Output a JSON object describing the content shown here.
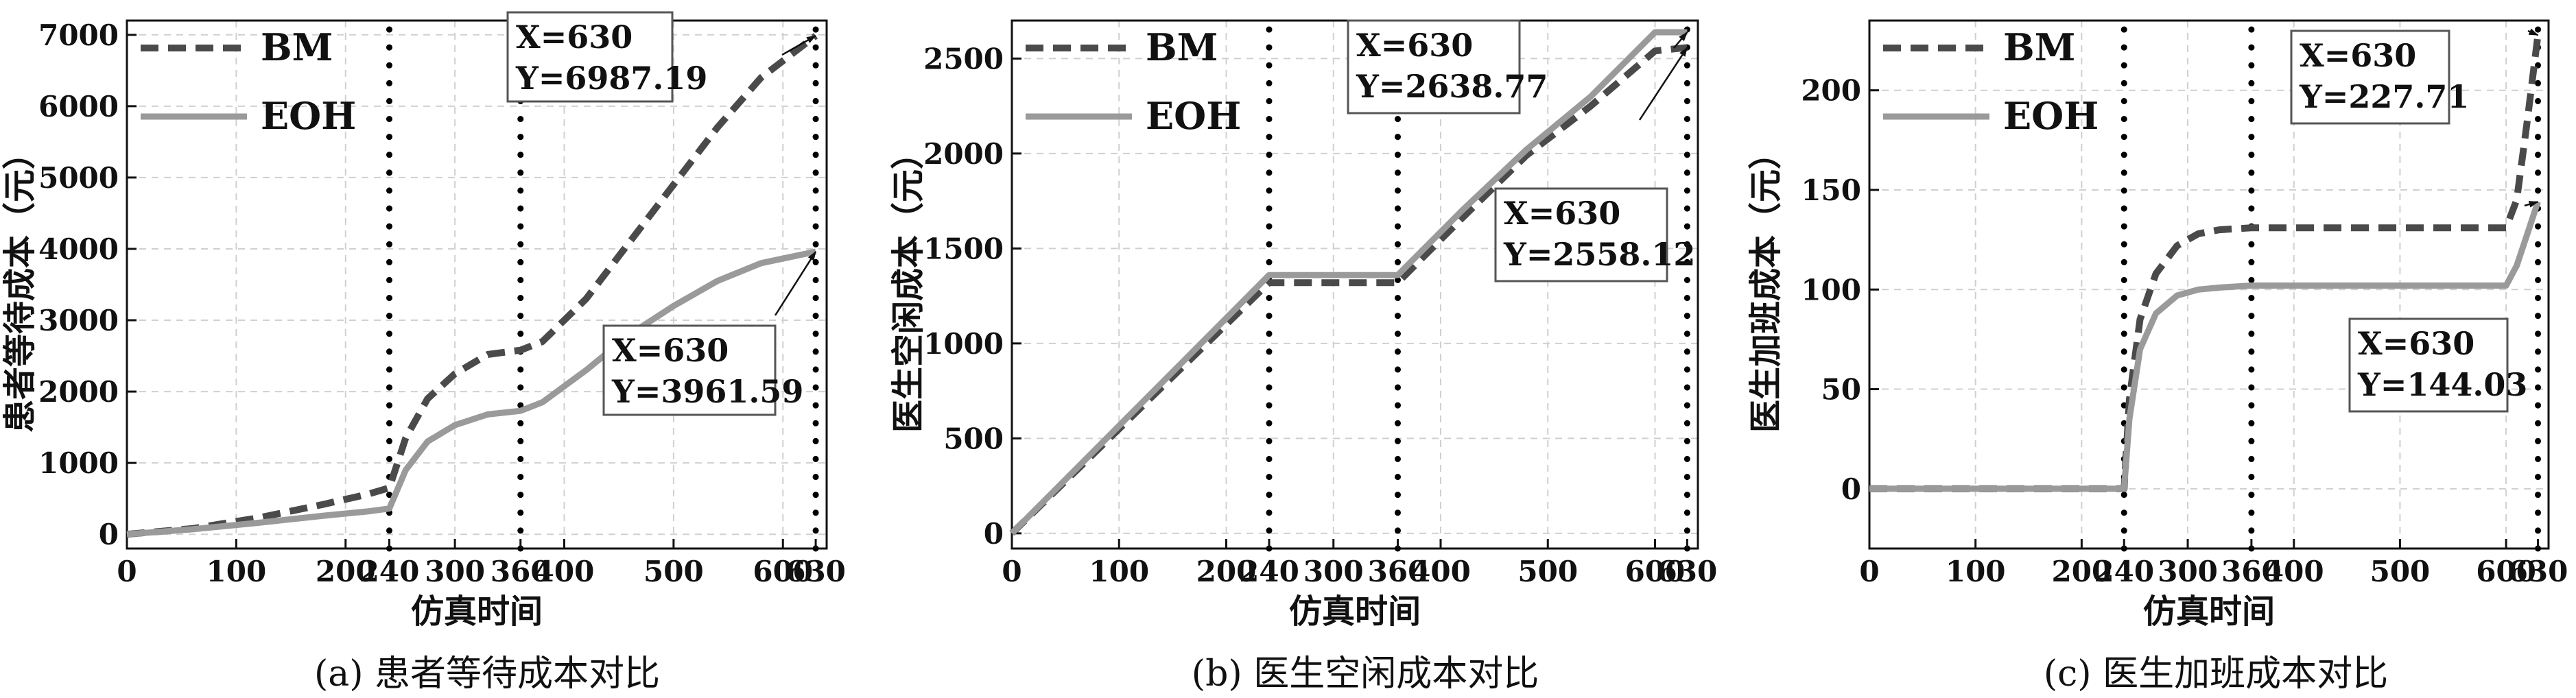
{
  "colors": {
    "bm": "#4a4a4a",
    "eoh": "#9a9a9a",
    "grid": "#d0d0d0",
    "annotation": "#111111"
  },
  "chart_data": [
    {
      "type": "line",
      "panel_label": "(a) 患者等待成本对比",
      "xlabel": "仿真时间",
      "ylabel": "患者等待成本（元）",
      "xlim": [
        0,
        640
      ],
      "ylim": [
        -200,
        7200
      ],
      "xticks": [
        "0",
        "100",
        "200",
        "240",
        "300",
        "360",
        "400",
        "500",
        "600",
        "630"
      ],
      "xtick_values": [
        0,
        100,
        200,
        240,
        300,
        360,
        400,
        500,
        600,
        630
      ],
      "yticks": [
        "0",
        "1000",
        "2000",
        "3000",
        "4000",
        "5000",
        "6000",
        "7000"
      ],
      "ytick_values": [
        0,
        1000,
        2000,
        3000,
        4000,
        5000,
        6000,
        7000
      ],
      "vlines": [
        240,
        360,
        630
      ],
      "grid": true,
      "legend_position": "top-left",
      "series": [
        {
          "name": "BM",
          "style": "dashed",
          "x": [
            0,
            60,
            120,
            180,
            220,
            240,
            255,
            275,
            300,
            330,
            360,
            380,
            420,
            460,
            500,
            540,
            580,
            630
          ],
          "y": [
            0,
            80,
            230,
            420,
            560,
            650,
            1350,
            1900,
            2250,
            2520,
            2580,
            2700,
            3300,
            4100,
            4900,
            5700,
            6400,
            6987.19
          ]
        },
        {
          "name": "EOH",
          "style": "solid",
          "x": [
            0,
            60,
            120,
            180,
            220,
            240,
            255,
            275,
            300,
            330,
            360,
            380,
            420,
            460,
            500,
            540,
            580,
            630
          ],
          "y": [
            0,
            70,
            160,
            260,
            320,
            360,
            900,
            1300,
            1530,
            1680,
            1730,
            1850,
            2300,
            2800,
            3200,
            3550,
            3800,
            3961.59
          ]
        }
      ],
      "annotations": [
        {
          "x_label": "X=630",
          "y_label": "Y=6987.19",
          "x": 630,
          "y": 6987.19
        },
        {
          "x_label": "X=630",
          "y_label": "Y=3961.59",
          "x": 630,
          "y": 3961.59
        }
      ]
    },
    {
      "type": "line",
      "panel_label": "(b) 医生空闲成本对比",
      "xlabel": "仿真时间",
      "ylabel": "医生空闲成本（元）",
      "xlim": [
        0,
        640
      ],
      "ylim": [
        -80,
        2700
      ],
      "xticks": [
        "0",
        "100",
        "200",
        "240",
        "300",
        "360",
        "400",
        "500",
        "600",
        "630"
      ],
      "xtick_values": [
        0,
        100,
        200,
        240,
        300,
        360,
        400,
        500,
        600,
        630
      ],
      "yticks": [
        "0",
        "500",
        "1000",
        "1500",
        "2000",
        "2500"
      ],
      "ytick_values": [
        0,
        500,
        1000,
        1500,
        2000,
        2500
      ],
      "vlines": [
        240,
        360,
        630
      ],
      "grid": true,
      "legend_position": "top-left",
      "series": [
        {
          "name": "BM",
          "style": "dashed",
          "x": [
            0,
            60,
            120,
            180,
            240,
            300,
            360,
            420,
            480,
            540,
            600,
            630
          ],
          "y": [
            0,
            330,
            660,
            990,
            1320,
            1320,
            1320,
            1660,
            1990,
            2250,
            2540,
            2558.12
          ]
        },
        {
          "name": "EOH",
          "style": "solid",
          "x": [
            0,
            60,
            120,
            180,
            240,
            300,
            360,
            420,
            480,
            540,
            600,
            630
          ],
          "y": [
            0,
            340,
            680,
            1020,
            1360,
            1360,
            1360,
            1700,
            2020,
            2300,
            2638.77,
            2638.77
          ]
        }
      ],
      "annotations": [
        {
          "x_label": "X=630",
          "y_label": "Y=2638.77",
          "x": 630,
          "y": 2638.77
        },
        {
          "x_label": "X=630",
          "y_label": "Y=2558.12",
          "x": 630,
          "y": 2558.12
        }
      ]
    },
    {
      "type": "line",
      "panel_label": "(c) 医生加班成本对比",
      "xlabel": "仿真时间",
      "ylabel": "医生加班成本（元）",
      "xlim": [
        0,
        640
      ],
      "ylim": [
        -30,
        235
      ],
      "xticks": [
        "0",
        "100",
        "200",
        "240",
        "300",
        "360",
        "400",
        "500",
        "600",
        "630"
      ],
      "xtick_values": [
        0,
        100,
        200,
        240,
        300,
        360,
        400,
        500,
        600,
        630
      ],
      "yticks": [
        "0",
        "50",
        "100",
        "150",
        "200"
      ],
      "ytick_values": [
        0,
        50,
        100,
        150,
        200
      ],
      "vlines": [
        240,
        360,
        630
      ],
      "grid": true,
      "legend_position": "top-left",
      "series": [
        {
          "name": "BM",
          "style": "dashed",
          "x": [
            0,
            100,
            200,
            240,
            245,
            255,
            270,
            290,
            310,
            330,
            360,
            420,
            500,
            580,
            600,
            610,
            620,
            630
          ],
          "y": [
            0,
            0,
            0,
            0,
            45,
            85,
            108,
            122,
            128,
            130,
            131,
            131,
            131,
            131,
            131,
            145,
            185,
            227.71
          ]
        },
        {
          "name": "EOH",
          "style": "solid",
          "x": [
            0,
            100,
            200,
            240,
            245,
            255,
            270,
            290,
            310,
            330,
            360,
            420,
            500,
            580,
            600,
            610,
            620,
            630
          ],
          "y": [
            0,
            0,
            0,
            0,
            35,
            70,
            88,
            97,
            100,
            101,
            102,
            102,
            102,
            102,
            102,
            112,
            128,
            144.03
          ]
        }
      ],
      "annotations": [
        {
          "x_label": "X=630",
          "y_label": "Y=227.71",
          "x": 630,
          "y": 227.71
        },
        {
          "x_label": "X=630",
          "y_label": "Y=144.03",
          "x": 630,
          "y": 144.03
        }
      ]
    }
  ]
}
